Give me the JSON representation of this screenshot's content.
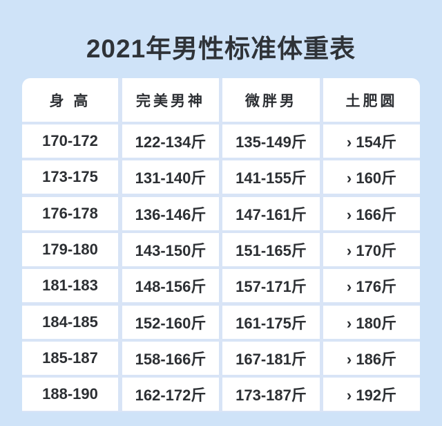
{
  "title": "2021年男性标准体重表",
  "colors": {
    "background": "#cfe3f8",
    "cell": "#ffffff",
    "text": "#2c2f33"
  },
  "table": {
    "headers": [
      "身 高",
      "完美男神",
      "微胖男",
      "土肥圆"
    ],
    "rows": [
      [
        "170-172",
        "122-134斤",
        "135-149斤",
        "› 154斤"
      ],
      [
        "173-175",
        "131-140斤",
        "141-155斤",
        "› 160斤"
      ],
      [
        "176-178",
        "136-146斤",
        "147-161斤",
        "› 166斤"
      ],
      [
        "179-180",
        "143-150斤",
        "151-165斤",
        "› 170斤"
      ],
      [
        "181-183",
        "148-156斤",
        "157-171斤",
        "› 176斤"
      ],
      [
        "184-185",
        "152-160斤",
        "161-175斤",
        "› 180斤"
      ],
      [
        "185-187",
        "158-166斤",
        "167-181斤",
        "› 186斤"
      ],
      [
        "188-190",
        "162-172斤",
        "173-187斤",
        "› 192斤"
      ]
    ]
  }
}
